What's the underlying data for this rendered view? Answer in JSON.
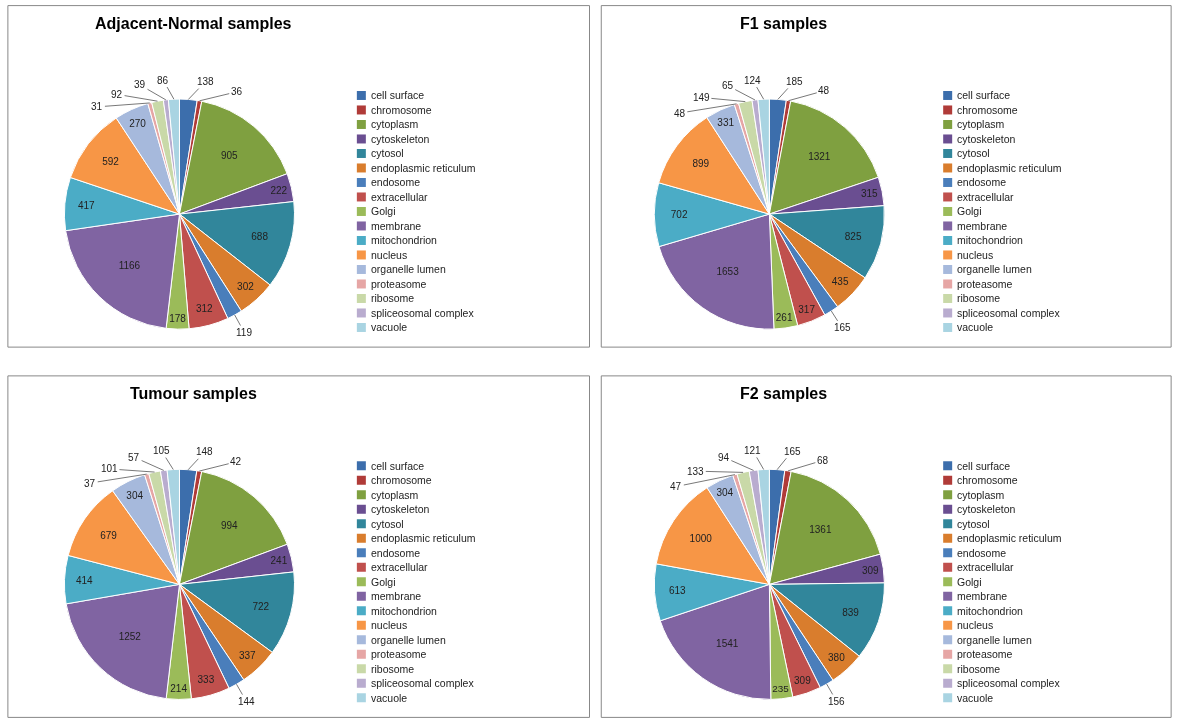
{
  "chart_data": [
    {
      "type": "pie",
      "title": "Adjacent-Normal samples",
      "legend": "right",
      "data_labels": true,
      "categories": [
        "cell surface",
        "chromosome",
        "cytoplasm",
        "cytoskeleton",
        "cytosol",
        "endoplasmic reticulum",
        "endosome",
        "extracellular",
        "Golgi",
        "membrane",
        "mitochondrion",
        "nucleus",
        "organelle lumen",
        "proteasome",
        "ribosome",
        "spliceosomal complex",
        "vacuole"
      ],
      "values": [
        138,
        36,
        905,
        222,
        688,
        302,
        119,
        312,
        178,
        1166,
        417,
        592,
        270,
        31,
        92,
        39,
        86
      ],
      "colors": [
        "#3c6eac",
        "#b03b38",
        "#7fa040",
        "#6a4e91",
        "#31869b",
        "#d97d2d",
        "#4a7ebb",
        "#c0504d",
        "#9bbb59",
        "#8064a2",
        "#4bacc6",
        "#f79646",
        "#a6b9dc",
        "#e6a6a5",
        "#c9d9a8",
        "#b9accf",
        "#a9d4e2"
      ]
    },
    {
      "type": "pie",
      "title": "F1 samples",
      "legend": "right",
      "data_labels": true,
      "categories": [
        "cell surface",
        "chromosome",
        "cytoplasm",
        "cytoskeleton",
        "cytosol",
        "endoplasmic reticulum",
        "endosome",
        "extracellular",
        "Golgi",
        "membrane",
        "mitochondrion",
        "nucleus",
        "organelle lumen",
        "proteasome",
        "ribosome",
        "spliceosomal complex",
        "vacuole"
      ],
      "values": [
        185,
        48,
        1321,
        315,
        825,
        435,
        165,
        317,
        261,
        1653,
        702,
        899,
        331,
        48,
        149,
        65,
        124
      ],
      "colors": [
        "#3c6eac",
        "#b03b38",
        "#7fa040",
        "#6a4e91",
        "#31869b",
        "#d97d2d",
        "#4a7ebb",
        "#c0504d",
        "#9bbb59",
        "#8064a2",
        "#4bacc6",
        "#f79646",
        "#a6b9dc",
        "#e6a6a5",
        "#c9d9a8",
        "#b9accf",
        "#a9d4e2"
      ]
    },
    {
      "type": "pie",
      "title": "Tumour samples",
      "legend": "right",
      "data_labels": true,
      "categories": [
        "cell surface",
        "chromosome",
        "cytoplasm",
        "cytoskeleton",
        "cytosol",
        "endoplasmic reticulum",
        "endosome",
        "extracellular",
        "Golgi",
        "membrane",
        "mitochondrion",
        "nucleus",
        "organelle lumen",
        "proteasome",
        "ribosome",
        "spliceosomal complex",
        "vacuole"
      ],
      "values": [
        148,
        42,
        994,
        241,
        722,
        337,
        144,
        333,
        214,
        1252,
        414,
        679,
        304,
        37,
        101,
        57,
        105
      ],
      "colors": [
        "#3c6eac",
        "#b03b38",
        "#7fa040",
        "#6a4e91",
        "#31869b",
        "#d97d2d",
        "#4a7ebb",
        "#c0504d",
        "#9bbb59",
        "#8064a2",
        "#4bacc6",
        "#f79646",
        "#a6b9dc",
        "#e6a6a5",
        "#c9d9a8",
        "#b9accf",
        "#a9d4e2"
      ]
    },
    {
      "type": "pie",
      "title": "F2 samples",
      "legend": "right",
      "data_labels": true,
      "categories": [
        "cell surface",
        "chromosome",
        "cytoplasm",
        "cytoskeleton",
        "cytosol",
        "endoplasmic reticulum",
        "endosome",
        "extracellular",
        "Golgi",
        "membrane",
        "mitochondrion",
        "nucleus",
        "organelle lumen",
        "proteasome",
        "ribosome",
        "spliceosomal complex",
        "vacuole"
      ],
      "values": [
        165,
        68,
        1361,
        309,
        839,
        380,
        156,
        309,
        235,
        1541,
        613,
        1000,
        304,
        47,
        133,
        94,
        121
      ],
      "colors": [
        "#3c6eac",
        "#b03b38",
        "#7fa040",
        "#6a4e91",
        "#31869b",
        "#d97d2d",
        "#4a7ebb",
        "#c0504d",
        "#9bbb59",
        "#8064a2",
        "#4bacc6",
        "#f79646",
        "#a6b9dc",
        "#e6a6a5",
        "#c9d9a8",
        "#b9accf",
        "#a9d4e2"
      ]
    }
  ]
}
